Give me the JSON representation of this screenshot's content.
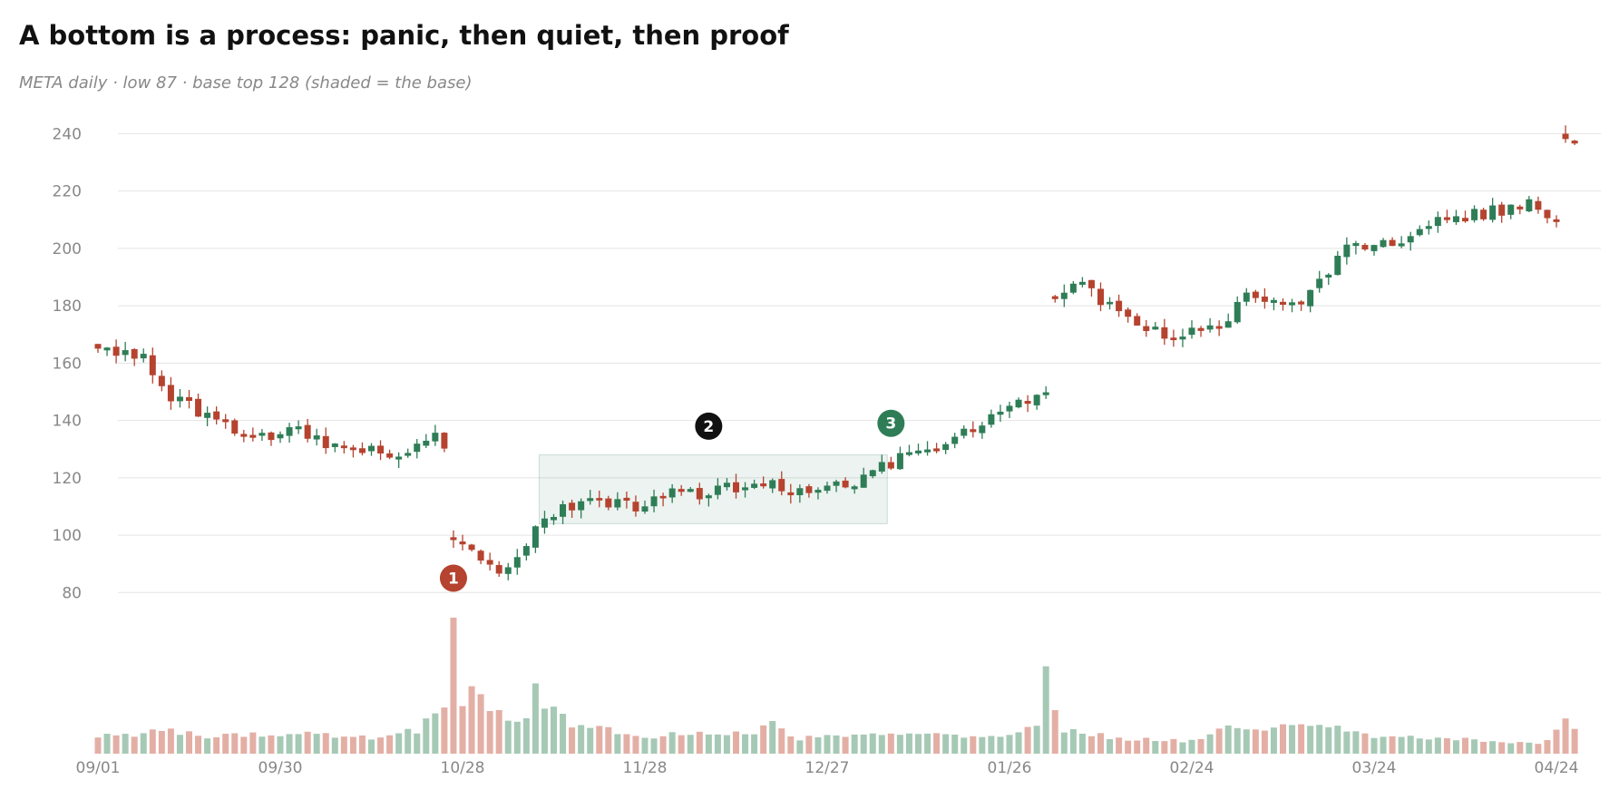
{
  "title": "A bottom is a process: panic, then quiet, then proof",
  "subtitle": "META daily · low 87 · base top 128 (shaded = the base)",
  "colors": {
    "up": "#2e7d57",
    "down": "#b5432f",
    "up_volume": "#a6c9b5",
    "down_volume": "#e3afa5",
    "base_fill": "#2e7d57",
    "marker_1": "#b5432f",
    "marker_2": "#111111",
    "marker_3": "#2e7d57"
  },
  "chart_data": {
    "type": "candlestick",
    "ticker": "META",
    "y_ticks": [
      80,
      100,
      120,
      140,
      160,
      180,
      200,
      220,
      240
    ],
    "ylim": [
      73,
      243
    ],
    "grid": true,
    "x_tick_labels": [
      "09/01",
      "09/30",
      "10/28",
      "11/28",
      "12/27",
      "01/26",
      "02/24",
      "03/24",
      "04/24"
    ],
    "x_tick_positions": [
      0,
      20,
      40,
      60,
      80,
      100,
      120,
      140,
      160
    ],
    "shaded_base": {
      "start_index": 49,
      "end_index": 86,
      "low": 104,
      "high": 128
    },
    "markers": [
      {
        "label": "1",
        "index": 39,
        "price": 85,
        "color_key": "marker_1"
      },
      {
        "label": "2",
        "index": 67,
        "price": 138,
        "color_key": "marker_2"
      },
      {
        "label": "3",
        "index": 87,
        "price": 139,
        "color_key": "marker_3"
      }
    ],
    "stats": {
      "low": 87,
      "base_top": 128
    },
    "waypoints": [
      [
        0,
        163
      ],
      [
        5,
        162
      ],
      [
        7,
        150
      ],
      [
        10,
        145
      ],
      [
        16,
        136
      ],
      [
        20,
        135
      ],
      [
        22,
        138
      ],
      [
        27,
        128
      ],
      [
        30,
        132
      ],
      [
        34,
        127
      ],
      [
        37,
        136
      ],
      [
        38,
        130
      ],
      [
        39,
        97
      ],
      [
        43,
        90
      ],
      [
        44,
        88
      ],
      [
        47,
        95
      ],
      [
        48,
        101
      ],
      [
        49,
        108
      ],
      [
        55,
        112
      ],
      [
        60,
        110
      ],
      [
        63,
        117
      ],
      [
        66,
        114
      ],
      [
        72,
        119
      ],
      [
        78,
        114
      ],
      [
        83,
        118
      ],
      [
        86,
        124
      ],
      [
        90,
        130
      ],
      [
        96,
        138
      ],
      [
        101,
        146
      ],
      [
        104,
        149
      ],
      [
        105,
        184
      ],
      [
        108,
        187
      ],
      [
        113,
        175
      ],
      [
        119,
        169
      ],
      [
        124,
        175
      ],
      [
        126,
        184
      ],
      [
        131,
        179
      ],
      [
        135,
        192
      ],
      [
        137,
        200
      ],
      [
        142,
        201
      ],
      [
        148,
        211
      ],
      [
        153,
        213
      ],
      [
        157,
        216
      ],
      [
        160,
        210
      ],
      [
        161,
        237
      ],
      [
        162,
        238
      ]
    ],
    "gap_indices": [
      39,
      105,
      161
    ],
    "volume_waypoints": [
      [
        0,
        0.13
      ],
      [
        5,
        0.14
      ],
      [
        7,
        0.18
      ],
      [
        12,
        0.13
      ],
      [
        22,
        0.15
      ],
      [
        30,
        0.12
      ],
      [
        35,
        0.17
      ],
      [
        37,
        0.3
      ],
      [
        38,
        0.35
      ],
      [
        39,
        1.0
      ],
      [
        40,
        0.41
      ],
      [
        41,
        0.52
      ],
      [
        42,
        0.47
      ],
      [
        43,
        0.3
      ],
      [
        47,
        0.26
      ],
      [
        48,
        0.45
      ],
      [
        49,
        0.35
      ],
      [
        52,
        0.22
      ],
      [
        60,
        0.12
      ],
      [
        66,
        0.16
      ],
      [
        72,
        0.14
      ],
      [
        74,
        0.28
      ],
      [
        76,
        0.11
      ],
      [
        86,
        0.14
      ],
      [
        100,
        0.12
      ],
      [
        103,
        0.2
      ],
      [
        104,
        0.64
      ],
      [
        105,
        0.33
      ],
      [
        106,
        0.18
      ],
      [
        112,
        0.11
      ],
      [
        120,
        0.09
      ],
      [
        124,
        0.19
      ],
      [
        126,
        0.18
      ],
      [
        135,
        0.21
      ],
      [
        140,
        0.13
      ],
      [
        155,
        0.09
      ],
      [
        158,
        0.07
      ],
      [
        160,
        0.16
      ],
      [
        161,
        0.3
      ],
      [
        162,
        0.17
      ]
    ]
  }
}
